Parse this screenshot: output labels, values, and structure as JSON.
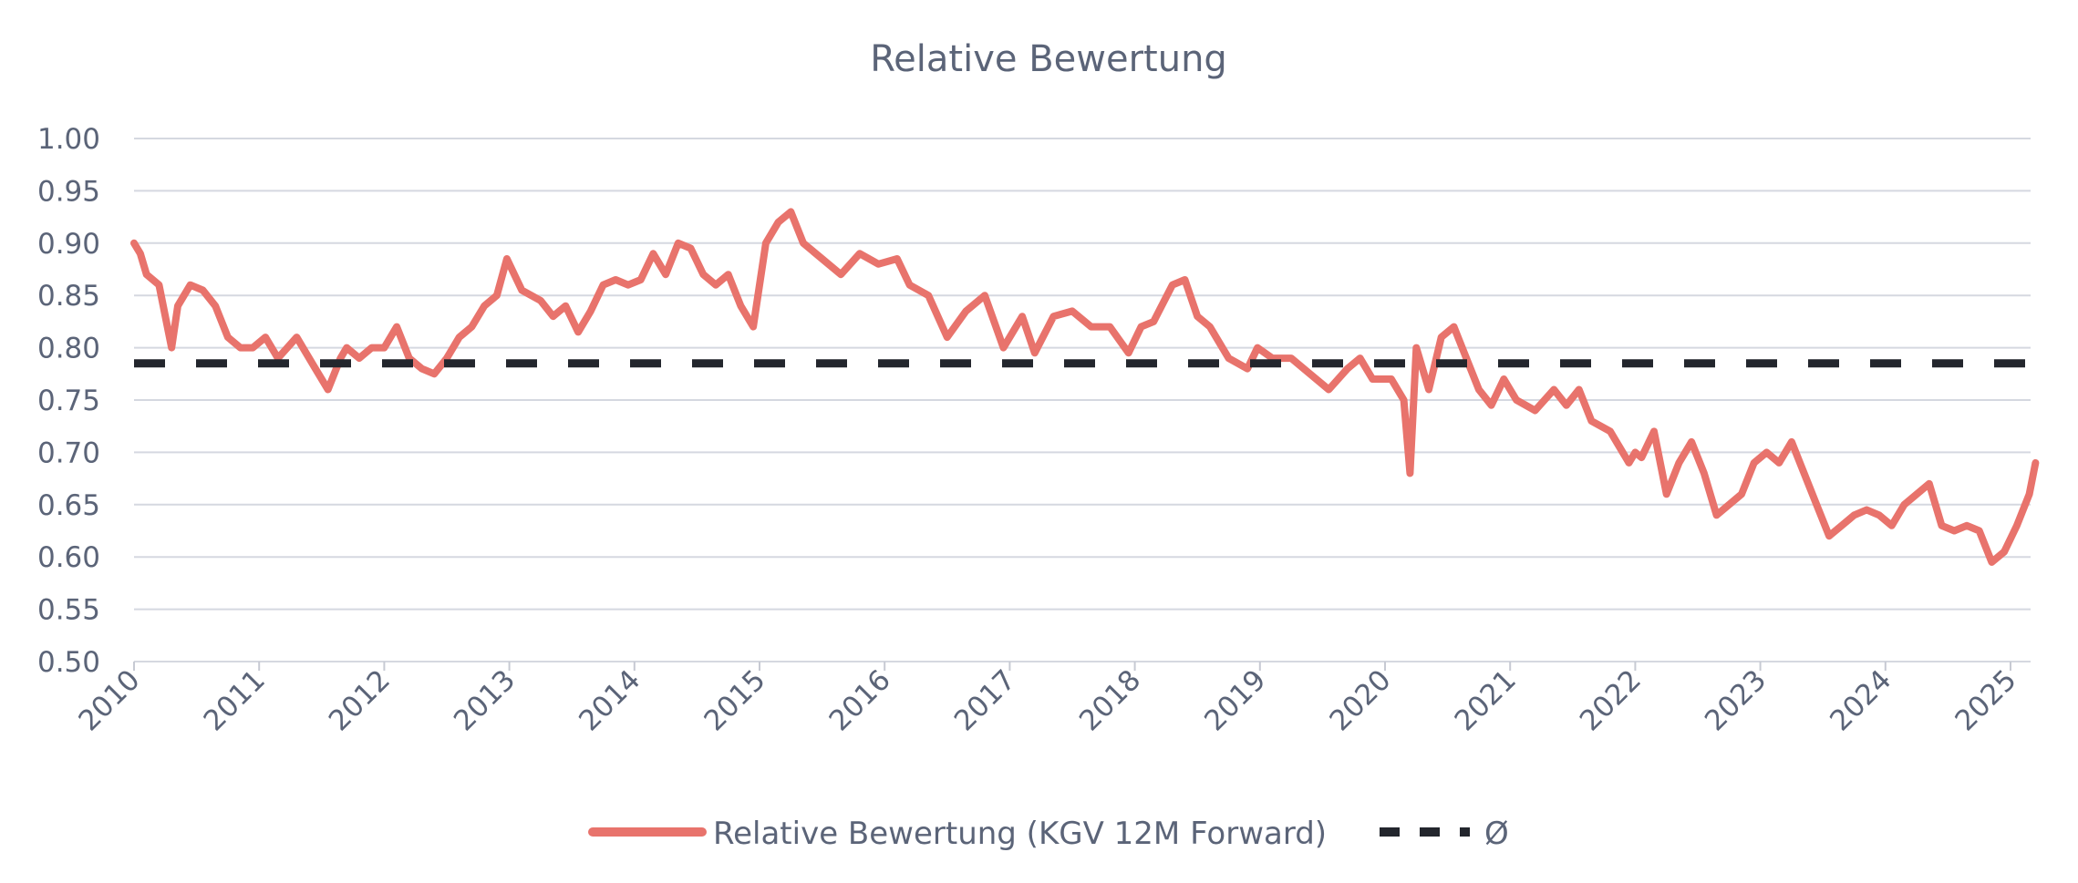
{
  "chart_data": {
    "type": "line",
    "title": "Relative Bewertung",
    "xlabel": "",
    "ylabel": "",
    "xlim": [
      2010,
      2025.2
    ],
    "ylim": [
      0.5,
      1.0
    ],
    "x_ticks": [
      "2010",
      "2011",
      "2012",
      "2013",
      "2014",
      "2015",
      "2016",
      "2017",
      "2018",
      "2019",
      "2020",
      "2021",
      "2022",
      "2023",
      "2024",
      "2025"
    ],
    "y_ticks": [
      "1.00",
      "0.95",
      "0.90",
      "0.85",
      "0.80",
      "0.75",
      "0.70",
      "0.65",
      "0.60",
      "0.55",
      "0.50"
    ],
    "grid": true,
    "legend_position": "bottom",
    "series": [
      {
        "name": "Relative Bewertung (KGV 12M Forward)",
        "color": "#e8736c",
        "style": "solid",
        "x": [
          2010.0,
          2010.05,
          2010.1,
          2010.2,
          2010.3,
          2010.35,
          2010.45,
          2010.55,
          2010.65,
          2010.75,
          2010.85,
          2010.95,
          2011.05,
          2011.15,
          2011.3,
          2011.45,
          2011.55,
          2011.65,
          2011.7,
          2011.8,
          2011.9,
          2012.0,
          2012.1,
          2012.2,
          2012.3,
          2012.4,
          2012.5,
          2012.6,
          2012.7,
          2012.8,
          2012.9,
          2012.98,
          2013.1,
          2013.25,
          2013.35,
          2013.45,
          2013.55,
          2013.65,
          2013.75,
          2013.85,
          2013.95,
          2014.05,
          2014.15,
          2014.25,
          2014.35,
          2014.45,
          2014.55,
          2014.65,
          2014.75,
          2014.85,
          2014.95,
          2015.05,
          2015.15,
          2015.25,
          2015.35,
          2015.5,
          2015.65,
          2015.8,
          2015.95,
          2016.1,
          2016.2,
          2016.35,
          2016.5,
          2016.65,
          2016.8,
          2016.95,
          2017.1,
          2017.2,
          2017.35,
          2017.5,
          2017.65,
          2017.8,
          2017.95,
          2018.05,
          2018.15,
          2018.3,
          2018.4,
          2018.5,
          2018.6,
          2018.75,
          2018.9,
          2018.98,
          2019.1,
          2019.25,
          2019.4,
          2019.55,
          2019.7,
          2019.8,
          2019.9,
          2020.05,
          2020.15,
          2020.2,
          2020.25,
          2020.35,
          2020.45,
          2020.55,
          2020.65,
          2020.75,
          2020.85,
          2020.95,
          2021.05,
          2021.2,
          2021.35,
          2021.45,
          2021.55,
          2021.65,
          2021.8,
          2021.95,
          2022.0,
          2022.05,
          2022.15,
          2022.25,
          2022.35,
          2022.45,
          2022.55,
          2022.65,
          2022.75,
          2022.85,
          2022.95,
          2023.05,
          2023.15,
          2023.25,
          2023.35,
          2023.45,
          2023.55,
          2023.65,
          2023.75,
          2023.85,
          2023.95,
          2024.05,
          2024.15,
          2024.25,
          2024.35,
          2024.45,
          2024.55,
          2024.65,
          2024.75,
          2024.85,
          2024.95,
          2025.05,
          2025.15,
          2025.2
        ],
        "values": [
          0.9,
          0.89,
          0.87,
          0.86,
          0.8,
          0.84,
          0.86,
          0.855,
          0.84,
          0.81,
          0.8,
          0.8,
          0.81,
          0.79,
          0.81,
          0.78,
          0.76,
          0.79,
          0.8,
          0.79,
          0.8,
          0.8,
          0.82,
          0.79,
          0.78,
          0.775,
          0.79,
          0.81,
          0.82,
          0.84,
          0.85,
          0.885,
          0.855,
          0.845,
          0.83,
          0.84,
          0.815,
          0.835,
          0.86,
          0.865,
          0.86,
          0.865,
          0.89,
          0.87,
          0.9,
          0.895,
          0.87,
          0.86,
          0.87,
          0.84,
          0.82,
          0.9,
          0.92,
          0.93,
          0.9,
          0.885,
          0.87,
          0.89,
          0.88,
          0.885,
          0.86,
          0.85,
          0.81,
          0.835,
          0.85,
          0.8,
          0.83,
          0.795,
          0.83,
          0.835,
          0.82,
          0.82,
          0.795,
          0.82,
          0.825,
          0.86,
          0.865,
          0.83,
          0.82,
          0.79,
          0.78,
          0.8,
          0.79,
          0.79,
          0.775,
          0.76,
          0.78,
          0.79,
          0.77,
          0.77,
          0.75,
          0.68,
          0.8,
          0.76,
          0.81,
          0.82,
          0.79,
          0.76,
          0.745,
          0.77,
          0.75,
          0.74,
          0.76,
          0.745,
          0.76,
          0.73,
          0.72,
          0.69,
          0.7,
          0.695,
          0.72,
          0.66,
          0.69,
          0.71,
          0.68,
          0.64,
          0.65,
          0.66,
          0.69,
          0.7,
          0.69,
          0.71,
          0.68,
          0.65,
          0.62,
          0.63,
          0.64,
          0.645,
          0.64,
          0.63,
          0.65,
          0.66,
          0.67,
          0.63,
          0.625,
          0.63,
          0.625,
          0.595,
          0.605,
          0.63,
          0.66,
          0.69
        ]
      },
      {
        "name": "Ø",
        "color": "#23262d",
        "style": "dashed",
        "x": [
          2010.0,
          2025.2
        ],
        "values": [
          0.785,
          0.785
        ]
      }
    ]
  }
}
